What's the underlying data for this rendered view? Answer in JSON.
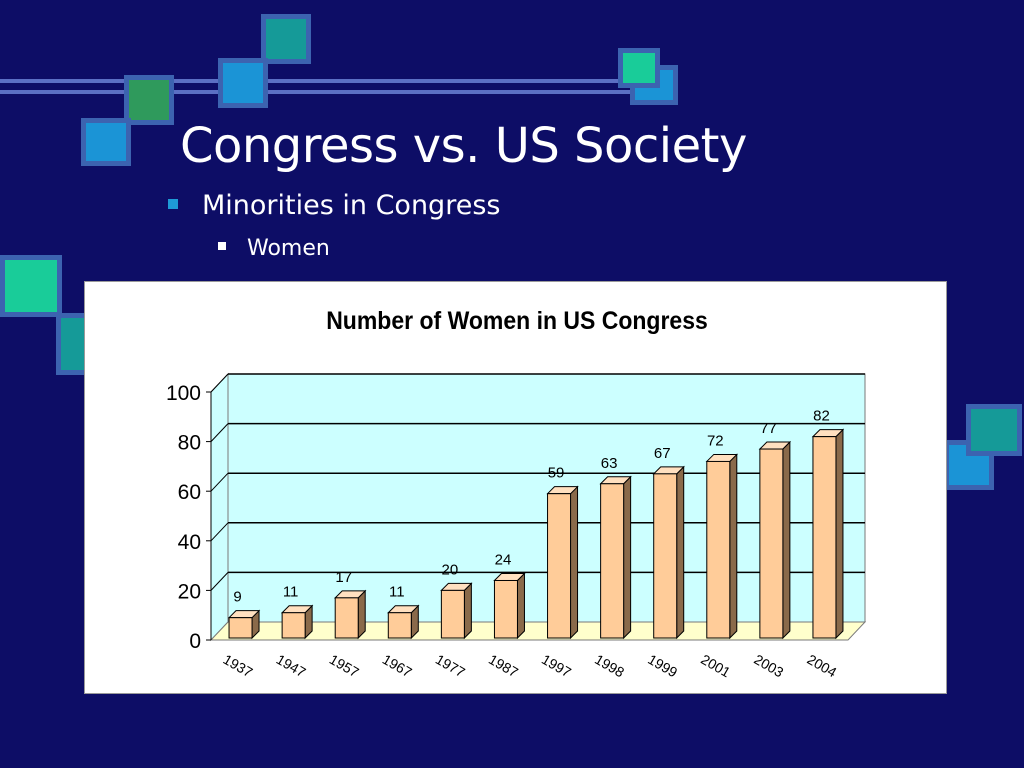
{
  "slide": {
    "title": "Congress vs. US Society",
    "bullets": [
      {
        "level": 1,
        "text": "Minorities in Congress"
      },
      {
        "level": 2,
        "text": "Women"
      }
    ]
  },
  "colors": {
    "background": "#0d0d66",
    "bar_front": "#ffcc99",
    "plot_back_wall": "#ccffff",
    "plot_floor": "#ffffcc"
  },
  "chart_data": {
    "type": "bar",
    "title": "Number of Women in US Congress",
    "xlabel": "",
    "ylabel": "",
    "categories": [
      "1937",
      "1947",
      "1957",
      "1967",
      "1977",
      "1987",
      "1997",
      "1998",
      "1999",
      "2001",
      "2003",
      "2004"
    ],
    "values": [
      9,
      11,
      17,
      11,
      20,
      24,
      59,
      63,
      67,
      72,
      77,
      82
    ],
    "data_labels": [
      "9",
      "11",
      "17",
      "11",
      "20",
      "24",
      "59",
      "63",
      "67",
      "72",
      "77",
      "82"
    ],
    "ylim": [
      0,
      100
    ],
    "yticks": [
      0,
      20,
      40,
      60,
      80,
      100
    ],
    "grid": true,
    "legend": "none",
    "style": "3d-column"
  }
}
